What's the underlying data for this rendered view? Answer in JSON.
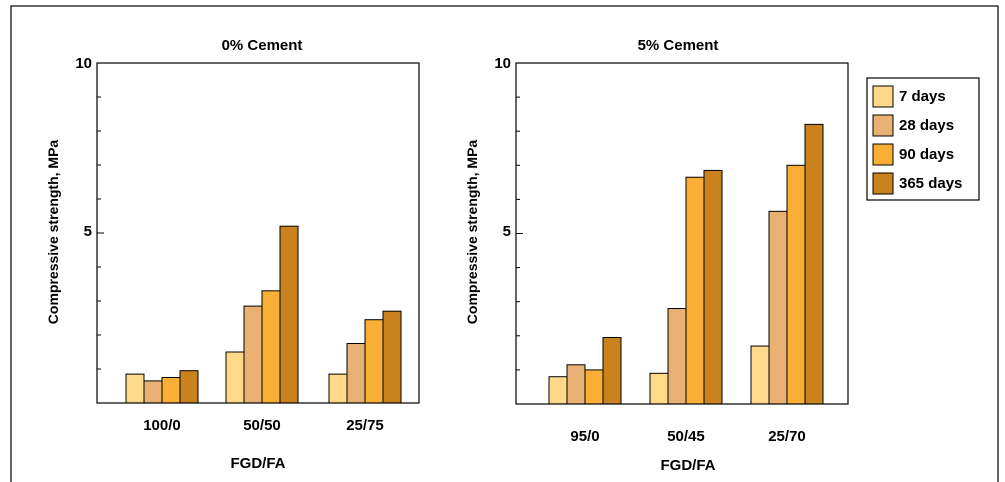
{
  "charts": [
    {
      "type": "bar",
      "title": "0% Cement",
      "xlabel": "FGD/FA",
      "ylabel": "Compressive strength, MPa",
      "ylim": [
        0,
        10
      ],
      "ytick_labels": [
        "5",
        "10"
      ],
      "categories": [
        "100/0",
        "50/50",
        "25/75"
      ],
      "series": [
        {
          "name": "7 days",
          "values": [
            0.85,
            1.5,
            0.85
          ]
        },
        {
          "name": "28 days",
          "values": [
            0.65,
            2.85,
            1.75
          ]
        },
        {
          "name": "90 days",
          "values": [
            0.75,
            3.3,
            2.45
          ]
        },
        {
          "name": "365 days",
          "values": [
            0.95,
            5.2,
            2.7
          ]
        }
      ]
    },
    {
      "type": "bar",
      "title": "5% Cement",
      "xlabel": "FGD/FA",
      "ylabel": "Compressive strength, MPa",
      "ylim": [
        0,
        10
      ],
      "ytick_labels": [
        "5",
        "10"
      ],
      "categories": [
        "95/0",
        "50/45",
        "25/70"
      ],
      "series": [
        {
          "name": "7 days",
          "values": [
            0.8,
            0.9,
            1.7
          ]
        },
        {
          "name": "28 days",
          "values": [
            1.15,
            2.8,
            5.65
          ]
        },
        {
          "name": "90 days",
          "values": [
            1.0,
            6.65,
            7.0
          ]
        },
        {
          "name": "365 days",
          "values": [
            1.95,
            6.85,
            8.2
          ]
        }
      ]
    }
  ],
  "legend": {
    "placement": "right",
    "items": [
      {
        "label": "7 days",
        "color": "#FFD98A"
      },
      {
        "label": "28 days",
        "color": "#E8B173"
      },
      {
        "label": "90 days",
        "color": "#F9AE35"
      },
      {
        "label": "365 days",
        "color": "#C9821E"
      }
    ]
  },
  "bar_outline_color": "#000000"
}
